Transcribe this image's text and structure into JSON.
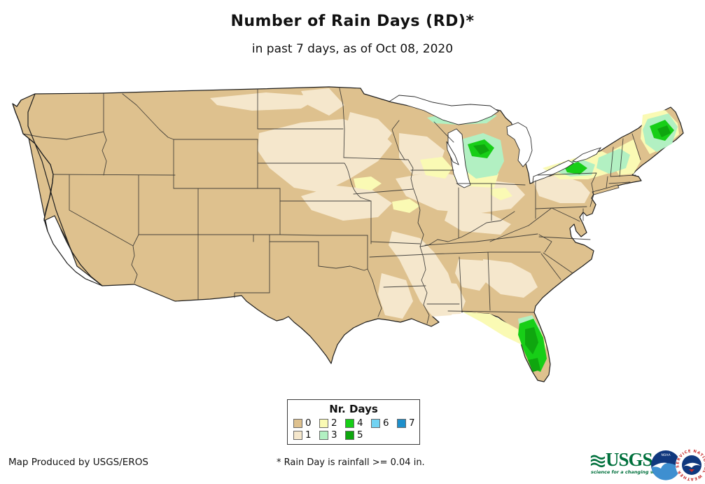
{
  "title": "Number of Rain Days (RD)*",
  "subtitle": "in past 7 days, as of Oct 08, 2020",
  "legend": {
    "title": "Nr. Days",
    "classes": [
      {
        "label": "0",
        "color": "#DEC18E"
      },
      {
        "label": "1",
        "color": "#F5E7CC"
      },
      {
        "label": "2",
        "color": "#FAFAB4"
      },
      {
        "label": "3",
        "color": "#B2F0C2"
      },
      {
        "label": "4",
        "color": "#17CE17"
      },
      {
        "label": "5",
        "color": "#0FA60F"
      },
      {
        "label": "6",
        "color": "#72D3F2"
      },
      {
        "label": "7",
        "color": "#1E8FCB"
      }
    ]
  },
  "footer": {
    "credit": "Map Produced by USGS/EROS",
    "footnote": "* Rain Day is rainfall >= 0.04 in."
  },
  "logos": {
    "usgs": {
      "name": "USGS",
      "tagline": "science for a changing world",
      "color": "#00703C"
    },
    "noaa": {
      "name": "NOAA",
      "navy": "#10387E",
      "light_blue": "#3E8FD0"
    },
    "nws": {
      "name": "NATIONAL WEATHER SERVICE",
      "red": "#C62828",
      "blue": "#10387E"
    }
  },
  "map_data": {
    "type": "choropleth",
    "area": "Conterminous United States",
    "variable": "Number of rain days in past 7 days",
    "base_class": "0 (most of the West, Plains and South shown in tan)",
    "regions": [
      {
        "area": "Western US, Texas, most Plains and Southeast",
        "classes": "0"
      },
      {
        "area": "Diagonal band SD-NE-IA-MN, mid Mississippi valley, LA/MS, east TX, PA, parts of Midwest",
        "classes": "1"
      },
      {
        "area": "Southern Michigan, Wisconsin spots, upstate New York, New England, Florida panhandle",
        "classes": "2"
      },
      {
        "area": "Northern Michigan, Adirondacks NY, VT/NH/ME, central Florida",
        "classes": "3"
      },
      {
        "area": "Northern lower Michigan, upper peninsula MI, central NY, interior Maine, Florida peninsula",
        "classes": "4-5"
      }
    ]
  }
}
